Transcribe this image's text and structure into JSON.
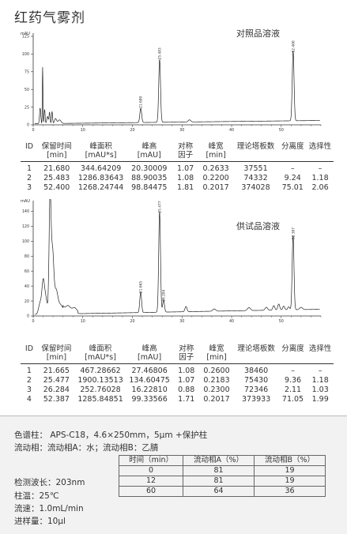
{
  "page_title": "红药气雾剂",
  "chart_data": [
    {
      "type": "line",
      "title": "对照品溶液",
      "ylabel": "mAU",
      "xlim": [
        0,
        58
      ],
      "ylim": [
        0,
        125
      ],
      "xticks": [
        0,
        10,
        20,
        30,
        40,
        50
      ],
      "yticks": [
        0,
        25,
        50,
        75,
        100,
        125
      ],
      "peaks": [
        {
          "rt": 21.68,
          "height": 20.3,
          "label": "21.680"
        },
        {
          "rt": 25.483,
          "height": 88.9,
          "label": "25.483"
        },
        {
          "rt": 52.4,
          "height": 98.8,
          "label": "52.400"
        }
      ]
    },
    {
      "type": "line",
      "title": "供试品溶液",
      "ylabel": "mAU",
      "xlim": [
        0,
        58
      ],
      "ylim": [
        0,
        150
      ],
      "xticks": [
        0,
        10,
        20,
        30,
        40,
        50
      ],
      "yticks": [
        0,
        20,
        40,
        60,
        80,
        100,
        120,
        140
      ],
      "peaks": [
        {
          "rt": 21.665,
          "height": 27.5,
          "label": "21.665"
        },
        {
          "rt": 25.477,
          "height": 134.6,
          "label": "25.477"
        },
        {
          "rt": 26.284,
          "height": 16.2,
          "label": "26.284"
        },
        {
          "rt": 52.387,
          "height": 99.3,
          "label": "52.387"
        }
      ]
    }
  ],
  "headers": {
    "id": "ID",
    "rt": [
      "保留时间",
      "[min]"
    ],
    "area": [
      "峰面积",
      "[mAU*s]"
    ],
    "height": [
      "峰高",
      "[mAU]"
    ],
    "sym": [
      "对称",
      "因子"
    ],
    "width": [
      "峰宽",
      "[min]"
    ],
    "plates": "理论塔板数",
    "res": "分离度",
    "sel": "选择性"
  },
  "table1": [
    [
      "1",
      "21.680",
      "344.64209",
      "20.30009",
      "1.07",
      "0.2633",
      "37551",
      "–",
      "–"
    ],
    [
      "2",
      "25.483",
      "1286.83643",
      "88.90035",
      "1.08",
      "0.2200",
      "74332",
      "9.24",
      "1.18"
    ],
    [
      "3",
      "52.400",
      "1268.24744",
      "98.84475",
      "1.81",
      "0.2017",
      "374028",
      "75.01",
      "2.06"
    ]
  ],
  "table2": [
    [
      "1",
      "21.665",
      "467.28662",
      "27.46806",
      "1.08",
      "0.2600",
      "38460",
      "–",
      "–"
    ],
    [
      "2",
      "25.477",
      "1900.13513",
      "134.60475",
      "1.07",
      "0.2183",
      "75430",
      "9.36",
      "1.18"
    ],
    [
      "3",
      "26.284",
      "252.76028",
      "16.22810",
      "0.88",
      "0.2300",
      "72346",
      "2.11",
      "1.03"
    ],
    [
      "4",
      "52.387",
      "1285.84851",
      "99.33566",
      "1.71",
      "0.2017",
      "373933",
      "71.05",
      "1.99"
    ]
  ],
  "conditions": {
    "column": "色谱柱：  APS-C18，4.6×250mm，5μm +保护柱",
    "mobile": "流动相：流动相A：水；流动相B：乙腈",
    "wavelength": "检测波长：203nm",
    "temp": "柱温：25℃",
    "flow": "流速：1.0mL/min",
    "injection": "进样量：10μl"
  },
  "gradient": {
    "headers": [
      "时间（min）",
      "流动相A（%）",
      "流动相B（%）"
    ],
    "rows": [
      [
        "0",
        "81",
        "19"
      ],
      [
        "12",
        "81",
        "19"
      ],
      [
        "60",
        "64",
        "36"
      ]
    ]
  }
}
